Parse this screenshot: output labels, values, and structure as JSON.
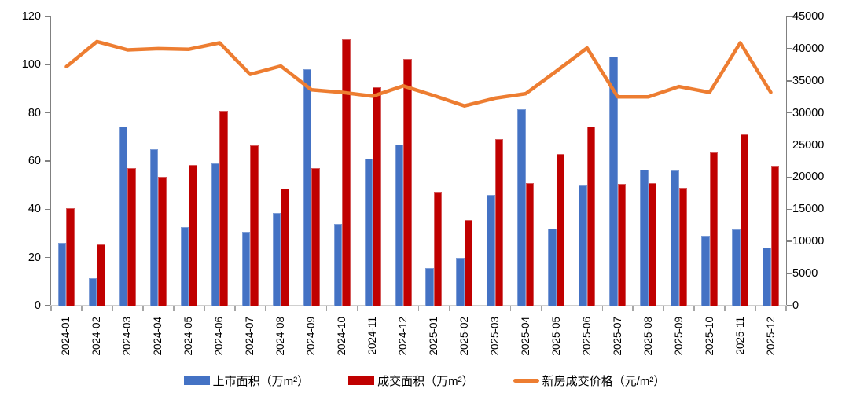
{
  "chart_data": {
    "type": "combo-bar-line",
    "x": [
      "2024-01",
      "2024-02",
      "2024-03",
      "2024-04",
      "2024-05",
      "2024-06",
      "2024-07",
      "2024-08",
      "2024-09",
      "2024-10",
      "2024-11",
      "2024-12",
      "2025-01",
      "2025-02",
      "2025-03",
      "2025-04",
      "2025-05",
      "2025-06",
      "2025-07",
      "2025-08",
      "2025-09",
      "2025-10",
      "2025-11",
      "2025-12"
    ],
    "series": [
      {
        "name": "上市面积（万m²）",
        "type": "bar",
        "axis": "left",
        "color": "#4472C4",
        "values": [
          26,
          11.5,
          74.5,
          65,
          32.5,
          59,
          30.5,
          38.5,
          98,
          34,
          61,
          67,
          15.5,
          20,
          46,
          81.5,
          32,
          50,
          103.5,
          56.5,
          56,
          29,
          31.5,
          24
        ]
      },
      {
        "name": "成交面积（万m²）",
        "type": "bar",
        "axis": "left",
        "color": "#C00000",
        "values": [
          40.5,
          25.5,
          57,
          53.5,
          58.5,
          81,
          66.5,
          48.5,
          57,
          110.5,
          90.5,
          102.5,
          47,
          35.5,
          69,
          51,
          63,
          74.5,
          50.5,
          51,
          49,
          63.5,
          71,
          58
        ]
      },
      {
        "name": "新房成交价格（元/m²）",
        "type": "line",
        "axis": "right",
        "color": "#ED7D31",
        "values": [
          37200,
          41100,
          39800,
          40000,
          39900,
          40900,
          36000,
          37300,
          33600,
          33200,
          32600,
          34200,
          32700,
          31100,
          32300,
          33000,
          36500,
          40100,
          32500,
          32500,
          34100,
          33200,
          40900,
          33200
        ]
      }
    ],
    "left_axis": {
      "min": 0,
      "max": 120,
      "step": 20,
      "ticks": [
        0,
        20,
        40,
        60,
        80,
        100,
        120
      ]
    },
    "right_axis": {
      "min": 0,
      "max": 45000,
      "step": 5000,
      "ticks": [
        0,
        5000,
        10000,
        15000,
        20000,
        25000,
        30000,
        35000,
        40000,
        45000
      ]
    },
    "grid": false,
    "legend_position": "bottom",
    "title": ""
  }
}
